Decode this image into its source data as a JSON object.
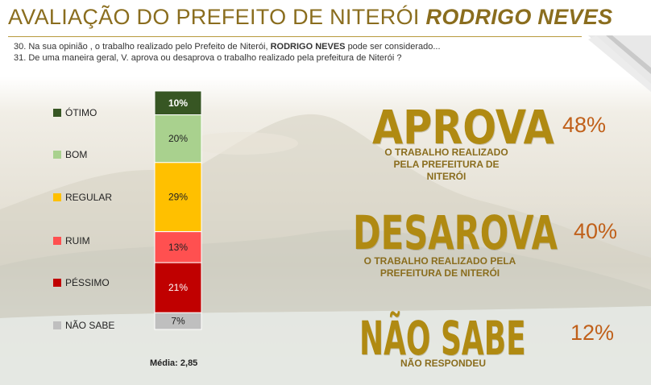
{
  "header": {
    "title_prefix": "AVALIAÇÃO DO PREFEITO DE NITERÓI",
    "title_name": "RODRIGO NEVES",
    "q30_start": "30. Na sua opinião , o trabalho realizado pelo Prefeito de Niterói,",
    "q30_name": "RODRIGO NEVES",
    "q30_end": "pode ser considerado...",
    "q31": "31. De uma maneira geral, V. aprova ou desaprova o trabalho realizado pela prefeitura de Niterói ?"
  },
  "chart_data": {
    "type": "bar",
    "stacked": true,
    "orientation": "vertical",
    "categories": [
      "ÓTIMO",
      "BOM",
      "REGULAR",
      "RUIM",
      "PÉSSIMO",
      "NÃO SABE"
    ],
    "values": [
      10,
      20,
      29,
      13,
      21,
      7
    ],
    "value_labels": [
      "10%",
      "20%",
      "29%",
      "13%",
      "21%",
      "7%"
    ],
    "colors": [
      "#375623",
      "#a9d18e",
      "#ffc000",
      "#ff5050",
      "#c00000",
      "#bfbfbf"
    ],
    "unit": "%",
    "legend_position": "left",
    "footer": "Média: 2,85"
  },
  "summary": {
    "aprova": {
      "label": "APROVA",
      "sub": "O TRABALHO REALIZADO PELA PREFEITURA DE NITERÓI",
      "pct": "48%"
    },
    "desaprova": {
      "label": "DESAROVA",
      "sub": "O TRABALHO REALIZADO PELA PREFEITURA DE NITERÓI",
      "pct": "40%"
    },
    "nao_sabe": {
      "label": "NÃO SABE",
      "sub": "NÃO RESPONDEU",
      "pct": "12%"
    }
  }
}
